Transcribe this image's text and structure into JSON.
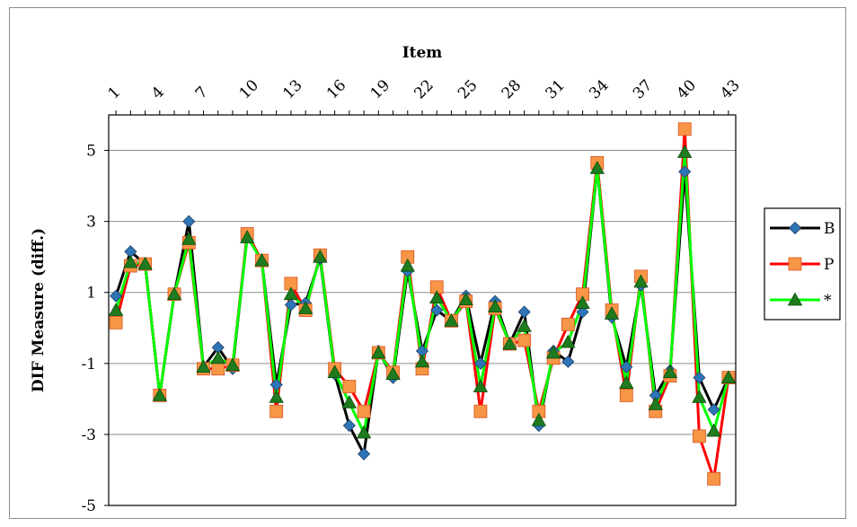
{
  "chart_data": {
    "type": "line",
    "xlabel": "Item",
    "ylabel": "DIF Measure (diff.)",
    "ylim": [
      -5,
      6
    ],
    "yticks": [
      5,
      3,
      1,
      -1,
      -3,
      -5
    ],
    "x_tick_labels": [
      "1",
      "4",
      "7",
      "10",
      "13",
      "16",
      "19",
      "22",
      "25",
      "28",
      "31",
      "34",
      "37",
      "40",
      "43"
    ],
    "x_tick_items": [
      1,
      4,
      7,
      10,
      13,
      16,
      19,
      22,
      25,
      28,
      31,
      34,
      37,
      40,
      43
    ],
    "x_axis_position": "top",
    "grid": "horizontal",
    "legend_position": "right",
    "x": [
      1,
      2,
      3,
      4,
      5,
      6,
      7,
      8,
      9,
      10,
      11,
      12,
      13,
      14,
      15,
      16,
      17,
      18,
      19,
      20,
      21,
      22,
      23,
      24,
      25,
      26,
      27,
      28,
      29,
      30,
      31,
      32,
      33,
      34,
      35,
      36,
      37,
      38,
      39,
      40,
      41,
      42,
      43
    ],
    "series": [
      {
        "name": "B",
        "color": "#000000",
        "marker": "diamond",
        "marker_color": "#2e75b6",
        "values": [
          0.9,
          2.15,
          1.8,
          -1.9,
          0.95,
          3.0,
          -1.1,
          -0.55,
          -1.15,
          2.6,
          1.9,
          -1.6,
          0.65,
          0.7,
          1.95,
          -1.3,
          -2.75,
          -3.55,
          -0.65,
          -1.4,
          1.6,
          -0.65,
          0.5,
          0.2,
          0.9,
          -1.0,
          0.75,
          -0.45,
          0.45,
          -2.75,
          -0.65,
          -0.95,
          0.45,
          4.5,
          0.3,
          -1.1,
          1.2,
          -1.9,
          -1.2,
          4.4,
          -1.4,
          -2.3,
          -1.4
        ]
      },
      {
        "name": "P",
        "color": "#ff0000",
        "marker": "square",
        "marker_color": "#f79646",
        "values": [
          0.15,
          1.75,
          1.8,
          -1.9,
          0.95,
          2.4,
          -1.15,
          -1.15,
          -1.05,
          2.65,
          1.9,
          -2.35,
          1.25,
          0.5,
          2.05,
          -1.15,
          -1.65,
          -2.35,
          -0.7,
          -1.25,
          2.0,
          -1.15,
          1.15,
          0.2,
          0.75,
          -2.35,
          0.55,
          -0.45,
          -0.35,
          -2.35,
          -0.85,
          0.1,
          0.95,
          4.65,
          0.5,
          -1.9,
          1.45,
          -2.35,
          -1.35,
          5.6,
          -3.05,
          -4.25,
          -1.4
        ]
      },
      {
        "name": "*",
        "color": "#00ff00",
        "marker": "triangle",
        "marker_color": "#1e7b1e",
        "values": [
          0.5,
          1.85,
          1.8,
          -1.9,
          0.95,
          2.5,
          -1.1,
          -0.85,
          -1.05,
          2.55,
          1.9,
          -1.95,
          0.95,
          0.55,
          2.0,
          -1.25,
          -2.1,
          -2.95,
          -0.7,
          -1.3,
          1.75,
          -0.95,
          0.85,
          0.2,
          0.8,
          -1.65,
          0.6,
          -0.45,
          0.05,
          -2.6,
          -0.7,
          -0.4,
          0.7,
          4.5,
          0.4,
          -1.55,
          1.3,
          -2.15,
          -1.25,
          4.95,
          -1.95,
          -2.9,
          -1.4
        ]
      }
    ]
  }
}
